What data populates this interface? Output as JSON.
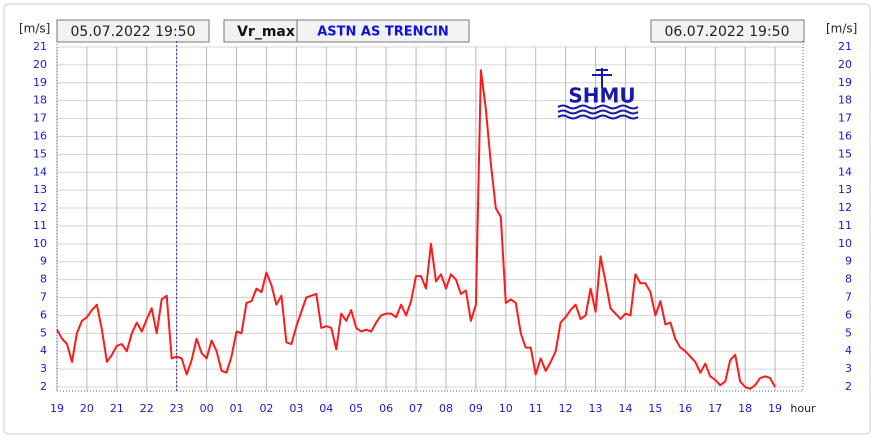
{
  "chart_data": {
    "type": "line",
    "start_label": "05.07.2022 19:50",
    "end_label": "06.07.2022 19:50",
    "variable": "Vr_max",
    "station": "ASTN AS TRENCIN",
    "logo": "SHMU",
    "y_label": "[m/s]",
    "x_label": "hour",
    "xlim": [
      0,
      1496
    ],
    "ylim": [
      2,
      21
    ],
    "xticks": [
      {
        "value": 0,
        "label": "19"
      },
      {
        "value": 60,
        "label": "20"
      },
      {
        "value": 120,
        "label": "21"
      },
      {
        "value": 180,
        "label": "22"
      },
      {
        "value": 240,
        "label": "23"
      },
      {
        "value": 300,
        "label": "00"
      },
      {
        "value": 360,
        "label": "01"
      },
      {
        "value": 420,
        "label": "02"
      },
      {
        "value": 480,
        "label": "03"
      },
      {
        "value": 540,
        "label": "04"
      },
      {
        "value": 600,
        "label": "05"
      },
      {
        "value": 660,
        "label": "06"
      },
      {
        "value": 720,
        "label": "07"
      },
      {
        "value": 780,
        "label": "08"
      },
      {
        "value": 840,
        "label": "09"
      },
      {
        "value": 900,
        "label": "10"
      },
      {
        "value": 960,
        "label": "11"
      },
      {
        "value": 1020,
        "label": "12"
      },
      {
        "value": 1080,
        "label": "13"
      },
      {
        "value": 1140,
        "label": "14"
      },
      {
        "value": 1200,
        "label": "15"
      },
      {
        "value": 1260,
        "label": "16"
      },
      {
        "value": 1320,
        "label": "17"
      },
      {
        "value": 1380,
        "label": "18"
      },
      {
        "value": 1440,
        "label": "19"
      }
    ],
    "yticks": [
      2,
      3,
      4,
      5,
      6,
      7,
      8,
      9,
      10,
      11,
      12,
      13,
      14,
      15,
      16,
      17,
      18,
      19,
      20,
      21
    ],
    "marker_x": 240,
    "grid": true,
    "series": [
      {
        "name": "Vr_max",
        "color": "#ff1a1a",
        "x": [
          0,
          10,
          20,
          30,
          40,
          50,
          60,
          70,
          80,
          90,
          100,
          110,
          120,
          130,
          140,
          150,
          160,
          170,
          180,
          190,
          200,
          210,
          220,
          230,
          240,
          250,
          260,
          270,
          280,
          290,
          300,
          310,
          320,
          330,
          340,
          350,
          360,
          370,
          380,
          390,
          400,
          410,
          420,
          430,
          440,
          450,
          460,
          470,
          480,
          490,
          500,
          510,
          520,
          530,
          540,
          550,
          560,
          570,
          580,
          590,
          600,
          610,
          620,
          630,
          640,
          650,
          660,
          670,
          680,
          690,
          700,
          710,
          720,
          730,
          740,
          750,
          760,
          770,
          780,
          790,
          800,
          810,
          820,
          830,
          840,
          850,
          860,
          870,
          880,
          890,
          900,
          910,
          920,
          930,
          940,
          950,
          960,
          970,
          980,
          990,
          1000,
          1010,
          1020,
          1030,
          1040,
          1050,
          1060,
          1070,
          1080,
          1090,
          1100,
          1110,
          1120,
          1130,
          1140,
          1150,
          1160,
          1170,
          1180,
          1190,
          1200,
          1210,
          1220,
          1230,
          1240,
          1250,
          1260,
          1270,
          1280,
          1290,
          1300,
          1310,
          1320,
          1330,
          1340,
          1350,
          1360,
          1370,
          1380,
          1390,
          1400,
          1410,
          1420,
          1430,
          1440
        ],
        "values": [
          5.2,
          4.7,
          4.4,
          3.4,
          5.0,
          5.7,
          5.9,
          6.3,
          6.6,
          5.2,
          3.4,
          3.8,
          4.3,
          4.4,
          4.0,
          5.0,
          5.6,
          5.1,
          5.8,
          6.4,
          5.0,
          6.9,
          7.1,
          3.6,
          3.7,
          3.6,
          2.7,
          3.5,
          4.7,
          3.9,
          3.6,
          4.6,
          4.0,
          2.9,
          2.8,
          3.7,
          5.1,
          5.0,
          6.7,
          6.8,
          7.5,
          7.3,
          8.4,
          7.7,
          6.6,
          7.1,
          4.5,
          4.4,
          5.4,
          6.2,
          7.0,
          7.1,
          7.2,
          5.3,
          5.4,
          5.3,
          4.1,
          6.1,
          5.7,
          6.3,
          5.3,
          5.1,
          5.2,
          5.1,
          5.6,
          6.0,
          6.1,
          6.1,
          5.9,
          6.6,
          6.0,
          6.8,
          8.2,
          8.2,
          7.5,
          10.0,
          7.9,
          8.3,
          7.5,
          8.3,
          8.0,
          7.2,
          7.4,
          5.7,
          6.6,
          19.7,
          17.5,
          14.5,
          12.0,
          11.5,
          6.7,
          6.9,
          6.7,
          5.0,
          4.2,
          4.2,
          2.7,
          3.6,
          2.9,
          3.4,
          4.0,
          5.6,
          5.9,
          6.3,
          6.6,
          5.8,
          6.0,
          7.5,
          6.2,
          9.3,
          7.9,
          6.4,
          6.1,
          5.8,
          6.1,
          6.0,
          8.3,
          7.8,
          7.8,
          7.3,
          6.0,
          6.8,
          5.5,
          5.6,
          4.7,
          4.2,
          4.0,
          3.7,
          3.4,
          2.8,
          3.3,
          2.6,
          2.4,
          2.1,
          2.3,
          3.5,
          3.8,
          2.3,
          2.0,
          1.9,
          2.1,
          2.5,
          2.6,
          2.5,
          2.0
        ]
      }
    ]
  }
}
